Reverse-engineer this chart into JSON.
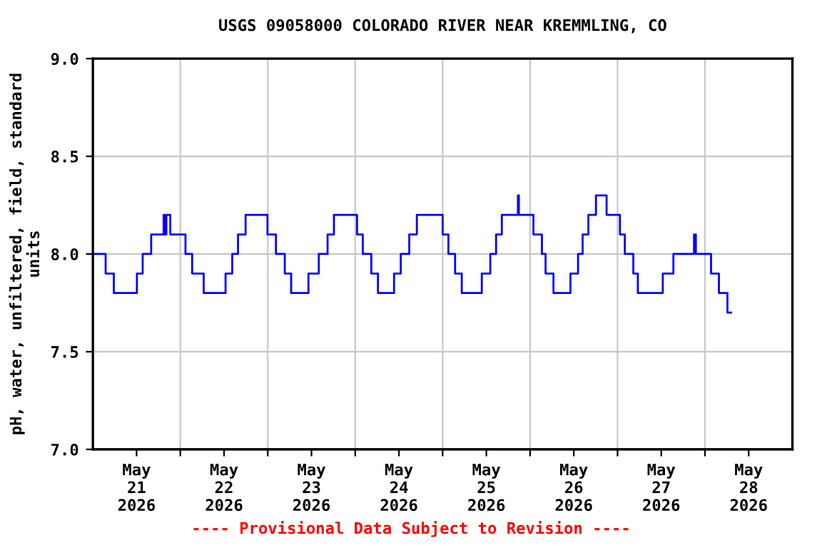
{
  "chart_data": {
    "type": "step",
    "title": "USGS 09058000 COLORADO RIVER NEAR KREMMLING, CO",
    "ylabel": "pH, water, unfiltered, field, standard\nunits",
    "annotations": [
      "---- Provisional Data Subject to Revision ----"
    ],
    "series": [
      {
        "color": "#0000ff",
        "x": [
          "2026-05-21T00:00",
          "2026-05-21T03:30",
          "2026-05-21T05:45",
          "2026-05-21T12:05",
          "2026-05-21T13:40",
          "2026-05-21T16:00",
          "2026-05-21T19:25",
          "2026-05-21T19:40",
          "2026-05-21T20:10",
          "2026-05-21T21:15",
          "2026-05-22T01:25",
          "2026-05-22T03:15",
          "2026-05-22T06:25",
          "2026-05-22T12:25",
          "2026-05-22T14:15",
          "2026-05-22T15:50",
          "2026-05-22T17:55",
          "2026-05-22T23:55",
          "2026-05-23T02:15",
          "2026-05-23T04:40",
          "2026-05-23T06:25",
          "2026-05-23T11:10",
          "2026-05-23T14:00",
          "2026-05-23T16:25",
          "2026-05-23T18:10",
          "2026-05-24T00:30",
          "2026-05-24T02:05",
          "2026-05-24T04:25",
          "2026-05-24T06:15",
          "2026-05-24T10:40",
          "2026-05-24T12:30",
          "2026-05-24T14:50",
          "2026-05-24T16:55",
          "2026-05-25T00:00",
          "2026-05-25T01:35",
          "2026-05-25T03:25",
          "2026-05-25T05:15",
          "2026-05-25T10:45",
          "2026-05-25T13:05",
          "2026-05-25T14:40",
          "2026-05-25T16:15",
          "2026-05-25T20:40",
          "2026-05-25T20:55",
          "2026-05-26T00:55",
          "2026-05-26T03:15",
          "2026-05-26T04:15",
          "2026-05-26T06:25",
          "2026-05-26T11:05",
          "2026-05-26T13:10",
          "2026-05-26T14:25",
          "2026-05-26T16:00",
          "2026-05-26T18:05",
          "2026-05-26T21:00",
          "2026-05-27T00:40",
          "2026-05-27T02:00",
          "2026-05-27T04:20",
          "2026-05-27T05:35",
          "2026-05-27T12:25",
          "2026-05-27T15:20",
          "2026-05-27T21:00",
          "2026-05-27T21:30",
          "2026-05-28T01:40",
          "2026-05-28T03:50",
          "2026-05-28T06:10",
          "2026-05-28T07:10"
        ],
        "values": [
          8.0,
          7.9,
          7.8,
          7.9,
          8.0,
          8.1,
          8.2,
          8.1,
          8.2,
          8.1,
          8.0,
          7.9,
          7.8,
          7.9,
          8.0,
          8.1,
          8.2,
          8.1,
          8.0,
          7.9,
          7.8,
          7.9,
          8.0,
          8.1,
          8.2,
          8.1,
          8.0,
          7.9,
          7.8,
          7.9,
          8.0,
          8.1,
          8.2,
          8.1,
          8.0,
          7.9,
          7.8,
          7.9,
          8.0,
          8.1,
          8.2,
          8.3,
          8.2,
          8.1,
          8.0,
          7.9,
          7.8,
          7.9,
          8.0,
          8.1,
          8.2,
          8.3,
          8.2,
          8.1,
          8.0,
          7.9,
          7.8,
          7.9,
          8.0,
          8.1,
          8.0,
          7.9,
          7.8,
          7.7,
          7.7
        ]
      }
    ],
    "xlim": [
      "2026-05-21T00:00",
      "2026-05-29T00:00"
    ],
    "xticks": [
      {
        "value": "2026-05-21T12:00",
        "label": "May\n21\n2026"
      },
      {
        "value": "2026-05-22T00:00",
        "label": null
      },
      {
        "value": "2026-05-22T12:00",
        "label": "May\n22\n2026"
      },
      {
        "value": "2026-05-23T00:00",
        "label": null
      },
      {
        "value": "2026-05-23T12:00",
        "label": "May\n23\n2026"
      },
      {
        "value": "2026-05-24T00:00",
        "label": null
      },
      {
        "value": "2026-05-24T12:00",
        "label": "May\n24\n2026"
      },
      {
        "value": "2026-05-25T00:00",
        "label": null
      },
      {
        "value": "2026-05-25T12:00",
        "label": "May\n25\n2026"
      },
      {
        "value": "2026-05-26T00:00",
        "label": null
      },
      {
        "value": "2026-05-26T12:00",
        "label": "May\n26\n2026"
      },
      {
        "value": "2026-05-27T00:00",
        "label": null
      },
      {
        "value": "2026-05-27T12:00",
        "label": "May\n27\n2026"
      },
      {
        "value": "2026-05-28T00:00",
        "label": null
      },
      {
        "value": "2026-05-28T12:00",
        "label": "May\n28\n2026"
      }
    ],
    "ylim": [
      7.0,
      9.0
    ],
    "yticks": [
      {
        "value": 7.0,
        "label": "7.0"
      },
      {
        "value": 7.5,
        "label": "7.5"
      },
      {
        "value": 8.0,
        "label": "8.0"
      },
      {
        "value": 8.5,
        "label": "8.5"
      },
      {
        "value": 9.0,
        "label": "9.0"
      }
    ],
    "grid": true,
    "legend": false
  }
}
